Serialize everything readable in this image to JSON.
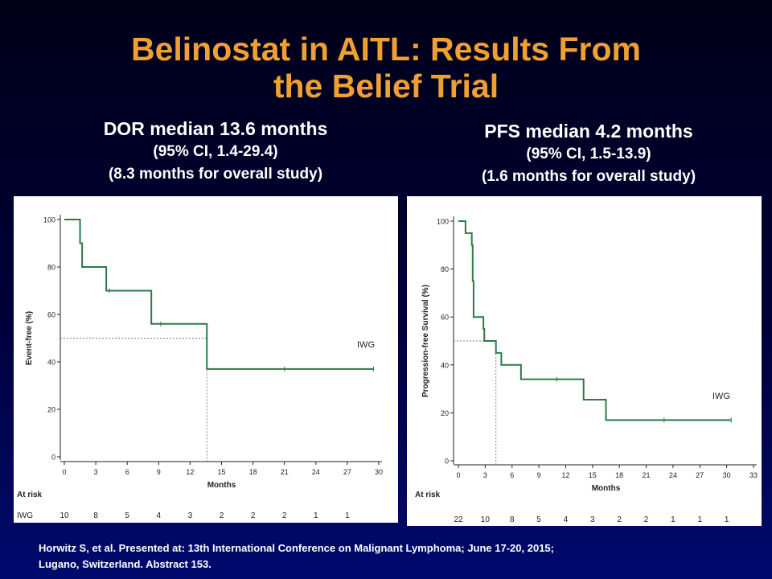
{
  "title": {
    "line1": "Belinostat in AITL: Results From",
    "line2": "the Belief Trial"
  },
  "left_header": {
    "line1": "DOR median 13.6 months",
    "line2": "(95%  CI, 1.4-29.4)",
    "line3": "(8.3 months for overall study)"
  },
  "right_header": {
    "line1": "PFS median 4.2 months",
    "line2": "(95%  CI, 1.5-13.9)",
    "line3": "(1.6 months for overall study)"
  },
  "citation": {
    "line1": "Horwitz S, et al. Presented at: 13th International Conference on Malignant Lymphoma; June 17-20, 2015;",
    "line2": "Lugano, Switzerland. Abstract 153."
  },
  "colors": {
    "title": "#f0a030",
    "curve": "#2a7a4a",
    "text": "#ffffff"
  },
  "chart_data": [
    {
      "type": "line",
      "step": true,
      "series": [
        {
          "name": "IWG",
          "x": [
            0,
            1.5,
            1.7,
            4.0,
            8.3,
            13.6,
            29.5
          ],
          "y": [
            100,
            90,
            80,
            70,
            56,
            37,
            37
          ]
        }
      ],
      "censor_marks": [
        {
          "x": 4.3,
          "y": 70
        },
        {
          "x": 9.2,
          "y": 56
        },
        {
          "x": 21.0,
          "y": 37
        },
        {
          "x": 29.5,
          "y": 37
        }
      ],
      "median": {
        "x": 13.6,
        "y": 50
      },
      "ylabel": "Event-free (%)",
      "xlabel": "Months",
      "xticks": [
        0,
        3,
        6,
        9,
        12,
        15,
        18,
        21,
        24,
        27,
        30
      ],
      "yticks": [
        0,
        20,
        40,
        60,
        80,
        100
      ],
      "xlim": [
        0,
        30
      ],
      "ylim": [
        0,
        100
      ],
      "series_label": "IWG",
      "at_risk_label": "At risk",
      "at_risk_row_label": "IWG",
      "at_risk_values": [
        "10",
        "8",
        "5",
        "4",
        "3",
        "2",
        "2",
        "2",
        "1",
        "1"
      ]
    },
    {
      "type": "line",
      "step": true,
      "series": [
        {
          "name": "IWG",
          "x": [
            0,
            0.8,
            1.5,
            1.6,
            1.7,
            1.8,
            2.8,
            2.9,
            3.0,
            4.2,
            4.8,
            7.0,
            14.0,
            16.5,
            30.5
          ],
          "y": [
            100,
            95,
            90,
            75,
            60,
            60,
            55,
            50,
            50,
            45,
            40,
            34,
            25.5,
            17,
            17
          ]
        }
      ],
      "censor_marks": [
        {
          "x": 11.0,
          "y": 34
        },
        {
          "x": 23.0,
          "y": 17
        },
        {
          "x": 30.5,
          "y": 17
        }
      ],
      "median": {
        "x": 4.2,
        "y": 50
      },
      "ylabel": "Progression-free Survival (%)",
      "xlabel": "Months",
      "xticks": [
        0,
        3,
        6,
        9,
        12,
        15,
        18,
        21,
        24,
        27,
        30,
        33
      ],
      "yticks": [
        0,
        20,
        40,
        60,
        80,
        100
      ],
      "xlim": [
        0,
        33
      ],
      "ylim": [
        0,
        100
      ],
      "series_label": "IWG",
      "at_risk_label": "At risk",
      "at_risk_values": [
        "22",
        "10",
        "8",
        "5",
        "4",
        "3",
        "2",
        "2",
        "1",
        "1",
        "1"
      ]
    }
  ]
}
